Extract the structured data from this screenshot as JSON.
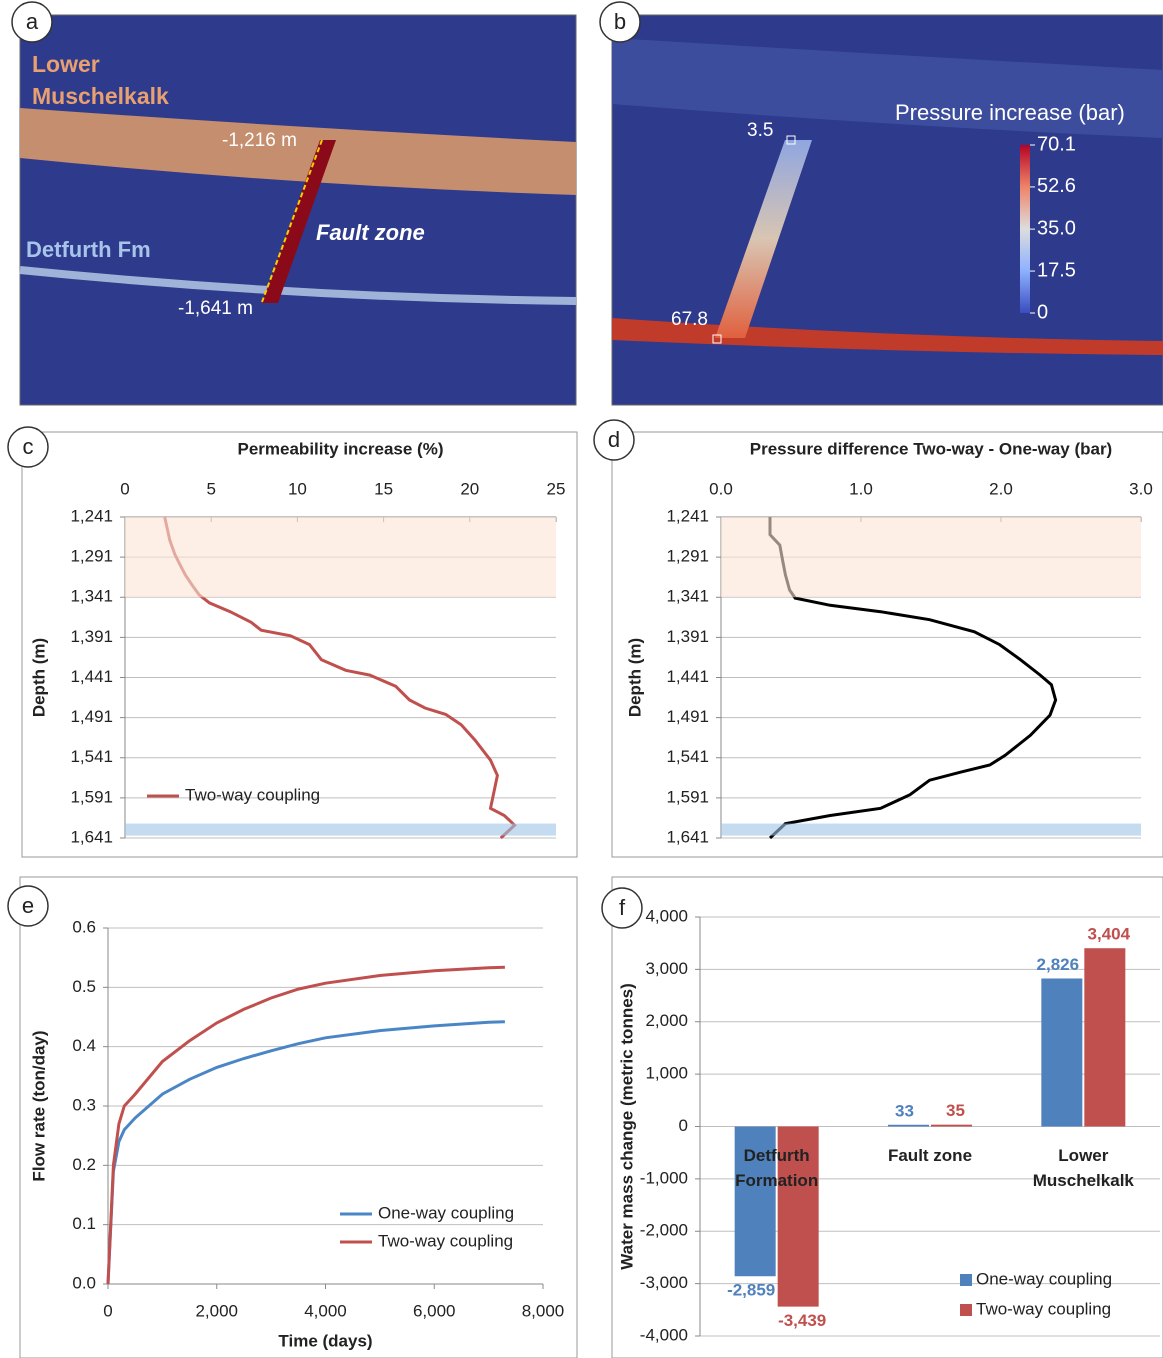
{
  "diagrams": [
    {
      "panel": "a",
      "labels": {
        "upper_unit": "Lower Muschelkalk",
        "lower_unit": "Detfurth Fm",
        "fault": "Fault zone",
        "top_depth": "-1,216 m",
        "bottom_depth": "-1,641 m"
      }
    },
    {
      "panel": "b",
      "colorbar": {
        "title": "Pressure increase (bar)",
        "lim": [
          0,
          70.1
        ],
        "ticks": [
          70.1,
          52.6,
          {
            "value": 35,
            "label": "35.0"
          },
          17.5,
          0
        ]
      },
      "probes": [
        3.5,
        67.8
      ]
    }
  ],
  "chart_data": [
    {
      "panel": "c",
      "type": "line",
      "xlabel": "Permeability increase (%)",
      "ylabel": "Depth (m)",
      "xlim": [
        0,
        25
      ],
      "xticks": [
        0,
        5,
        10,
        15,
        20,
        25
      ],
      "ylim": [
        1241,
        1641
      ],
      "y_inverted": true,
      "yticks": [
        {
          "value": 1241,
          "label": "1,241"
        },
        {
          "value": 1291,
          "label": "1,291"
        },
        {
          "value": 1341,
          "label": "1,341"
        },
        {
          "value": 1391,
          "label": "1,391"
        },
        {
          "value": 1441,
          "label": "1,441"
        },
        {
          "value": 1491,
          "label": "1,491"
        },
        {
          "value": 1541,
          "label": "1,541"
        },
        {
          "value": 1591,
          "label": "1,591"
        },
        {
          "value": 1641,
          "label": "1,641"
        }
      ],
      "grid": true,
      "legend": "lower-left",
      "bands": [
        {
          "from": 1241,
          "to": 1341,
          "color": "#fbe5d6"
        },
        {
          "from": 1623,
          "to": 1638,
          "color": "#9dc3e6"
        }
      ],
      "y": [
        1241,
        1270,
        1288,
        1301,
        1313,
        1326,
        1338,
        1348,
        1359,
        1372,
        1382,
        1389,
        1400,
        1419,
        1432,
        1438,
        1452,
        1469,
        1479,
        1487,
        1500,
        1519,
        1544,
        1563,
        1594,
        1604,
        1613,
        1625,
        1641
      ],
      "series": [
        {
          "name": "Two-way coupling",
          "color": "#c0504d",
          "values": [
            2.3,
            2.6,
            2.9,
            3.2,
            3.5,
            3.9,
            4.3,
            4.9,
            6.1,
            7.3,
            7.9,
            9.6,
            10.7,
            11.4,
            12.8,
            14.2,
            15.7,
            16.5,
            17.4,
            18.6,
            19.5,
            20.3,
            21.2,
            21.6,
            21.3,
            21.2,
            22.0,
            22.6,
            21.8
          ]
        }
      ]
    },
    {
      "panel": "d",
      "type": "line",
      "xlabel": "Pressure difference Two-way - One-way (bar)",
      "ylabel": "Depth (m)",
      "xlim": [
        0,
        3
      ],
      "xticks": [
        {
          "value": 0,
          "label": "0.0"
        },
        {
          "value": 1,
          "label": "1.0"
        },
        {
          "value": 2,
          "label": "2.0"
        },
        {
          "value": 3,
          "label": "3.0"
        }
      ],
      "ylim": [
        1241,
        1641
      ],
      "y_inverted": true,
      "yticks": [
        {
          "value": 1241,
          "label": "1,241"
        },
        {
          "value": 1291,
          "label": "1,291"
        },
        {
          "value": 1341,
          "label": "1,341"
        },
        {
          "value": 1391,
          "label": "1,391"
        },
        {
          "value": 1441,
          "label": "1,441"
        },
        {
          "value": 1491,
          "label": "1,491"
        },
        {
          "value": 1541,
          "label": "1,541"
        },
        {
          "value": 1591,
          "label": "1,591"
        },
        {
          "value": 1641,
          "label": "1,641"
        }
      ],
      "grid": true,
      "bands": [
        {
          "from": 1241,
          "to": 1341,
          "color": "#fbe5d6"
        },
        {
          "from": 1623,
          "to": 1638,
          "color": "#9dc3e6"
        }
      ],
      "y": [
        1241,
        1263,
        1276,
        1295,
        1313,
        1332,
        1342,
        1351,
        1359,
        1369,
        1384,
        1400,
        1419,
        1438,
        1450,
        1469,
        1488,
        1513,
        1538,
        1550,
        1559,
        1569,
        1587,
        1604,
        1613,
        1623,
        1641
      ],
      "series": [
        {
          "color": "#000000",
          "values": [
            0.35,
            0.35,
            0.42,
            0.44,
            0.46,
            0.49,
            0.53,
            0.78,
            1.14,
            1.49,
            1.81,
            1.99,
            2.14,
            2.28,
            2.36,
            2.39,
            2.35,
            2.21,
            2.03,
            1.92,
            1.71,
            1.49,
            1.35,
            1.14,
            0.78,
            0.46,
            0.35
          ]
        }
      ]
    },
    {
      "panel": "e",
      "type": "line",
      "xlabel": "Time (days)",
      "ylabel": "Flow rate (ton/day)",
      "xlim": [
        0,
        8000
      ],
      "xticks": [
        0,
        {
          "value": 2000,
          "label": "2,000"
        },
        {
          "value": 4000,
          "label": "4,000"
        },
        {
          "value": 6000,
          "label": "6,000"
        },
        {
          "value": 8000,
          "label": "8,000"
        }
      ],
      "ylim": [
        0,
        0.6
      ],
      "yticks": [
        {
          "value": 0,
          "label": "0.0"
        },
        0.1,
        0.2,
        0.3,
        0.4,
        0.5,
        0.6
      ],
      "grid": true,
      "legend": "lower-right",
      "x": [
        0,
        100,
        200,
        300,
        500,
        1000,
        1500,
        2000,
        2500,
        3000,
        3500,
        4000,
        5000,
        6000,
        7000,
        7300
      ],
      "series": [
        {
          "name": "One-way coupling",
          "color": "#4a86c5",
          "values": [
            0,
            0.19,
            0.24,
            0.26,
            0.28,
            0.32,
            0.345,
            0.365,
            0.38,
            0.393,
            0.405,
            0.415,
            0.427,
            0.435,
            0.441,
            0.442
          ]
        },
        {
          "name": "Two-way coupling",
          "color": "#c0504d",
          "values": [
            0,
            0.2,
            0.27,
            0.3,
            0.32,
            0.375,
            0.41,
            0.44,
            0.463,
            0.482,
            0.497,
            0.507,
            0.52,
            0.528,
            0.533,
            0.534
          ]
        }
      ]
    },
    {
      "panel": "f",
      "type": "bar",
      "ylabel": "Water mass change (metric tonnes)",
      "categories": [
        "Detfurth Formation",
        "Fault zone",
        "Lower Muschelkalk"
      ],
      "ylim": [
        -4000,
        4000
      ],
      "yticks": [
        {
          "value": -4000,
          "label": "-4,000"
        },
        {
          "value": -3000,
          "label": "-3,000"
        },
        {
          "value": -2000,
          "label": "-2,000"
        },
        {
          "value": -1000,
          "label": "-1,000"
        },
        0,
        {
          "value": 1000,
          "label": "1,000"
        },
        {
          "value": 2000,
          "label": "2,000"
        },
        {
          "value": 3000,
          "label": "3,000"
        },
        {
          "value": 4000,
          "label": "4,000"
        }
      ],
      "grid": true,
      "legend": "lower-right",
      "series": [
        {
          "name": "One-way coupling",
          "color": "#4f81bd",
          "values": [
            -2859,
            33,
            2826
          ],
          "value_labels": [
            "-2,859",
            "33",
            "2,826"
          ]
        },
        {
          "name": "Two-way coupling",
          "color": "#c0504d",
          "values": [
            -3439,
            35,
            3404
          ],
          "value_labels": [
            "-3,439",
            "35",
            "3,404"
          ]
        }
      ]
    }
  ]
}
